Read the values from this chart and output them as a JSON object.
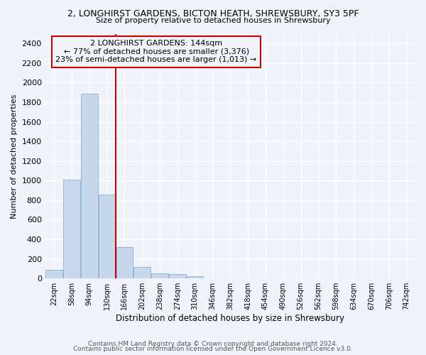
{
  "title_line1": "2, LONGHIRST GARDENS, BICTON HEATH, SHREWSBURY, SY3 5PF",
  "title_line2": "Size of property relative to detached houses in Shrewsbury",
  "xlabel": "Distribution of detached houses by size in Shrewsbury",
  "ylabel": "Number of detached properties",
  "bar_color": "#c8d8ec",
  "bar_edgecolor": "#8ab0d0",
  "categories": [
    "22sqm",
    "58sqm",
    "94sqm",
    "130sqm",
    "166sqm",
    "202sqm",
    "238sqm",
    "274sqm",
    "310sqm",
    "346sqm",
    "382sqm",
    "418sqm",
    "454sqm",
    "490sqm",
    "526sqm",
    "562sqm",
    "598sqm",
    "634sqm",
    "670sqm",
    "706sqm",
    "742sqm"
  ],
  "values": [
    90,
    1010,
    1890,
    860,
    320,
    115,
    55,
    48,
    25,
    0,
    0,
    0,
    0,
    0,
    0,
    0,
    0,
    0,
    0,
    0,
    0
  ],
  "ylim": [
    0,
    2500
  ],
  "yticks": [
    0,
    200,
    400,
    600,
    800,
    1000,
    1200,
    1400,
    1600,
    1800,
    2000,
    2200,
    2400
  ],
  "annotation_line1": "  2 LONGHIRST GARDENS: 144sqm  ",
  "annotation_line2": "← 77% of detached houses are smaller (3,376)",
  "annotation_line3": "23% of semi-detached houses are larger (1,013) →",
  "box_color": "#cc0000",
  "footer_line1": "Contains HM Land Registry data © Crown copyright and database right 2024.",
  "footer_line2": "Contains public sector information licensed under the Open Government Licence v3.0.",
  "background_color": "#f0f4fa",
  "grid_color": "#ffffff",
  "line_x_index": 3.5
}
